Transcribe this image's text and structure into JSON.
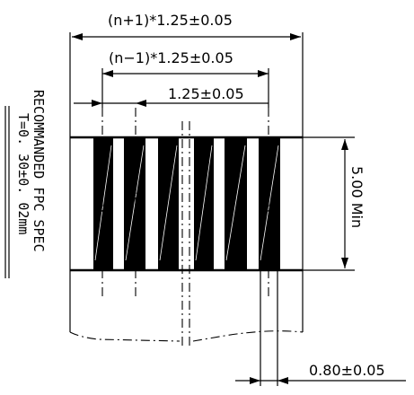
{
  "dimensions": {
    "overall": "(n+1)*1.25±0.05",
    "inner": "(n−1)*1.25±0.05",
    "pitch": "1.25±0.05",
    "length": "5.00 Min",
    "trace_width": "0.80±0.05"
  },
  "side_note": {
    "line1": "RECOMMANDED FPC SPEC",
    "line2": "T=0. 30±0. 02mm"
  }
}
